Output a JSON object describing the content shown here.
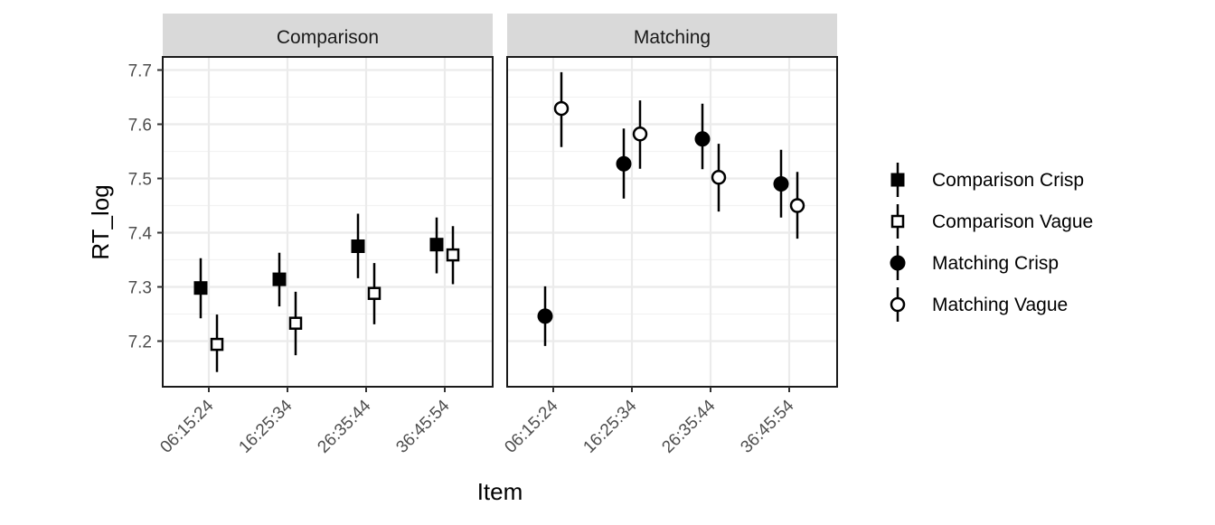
{
  "chart_data": {
    "type": "scatter",
    "subtype": "point-errorbar faceted",
    "xlabel": "Item",
    "ylabel": "RT_log",
    "ylim": [
      7.12,
      7.73
    ],
    "yticks": [
      7.2,
      7.3,
      7.4,
      7.5,
      7.6,
      7.7
    ],
    "categories": [
      "06:15:24",
      "16:25:34",
      "26:35:44",
      "36:45:54"
    ],
    "grid": true,
    "legend_position": "right",
    "panels": [
      {
        "strip": "Comparison",
        "series": [
          {
            "name": "Comparison Crisp",
            "marker": "filled-square",
            "values": [
              7.298,
              7.314,
              7.375,
              7.378
            ],
            "lower": [
              7.242,
              7.264,
              7.316,
              7.325
            ],
            "upper": [
              7.353,
              7.363,
              7.435,
              7.428
            ]
          },
          {
            "name": "Comparison Vague",
            "marker": "open-square",
            "values": [
              7.194,
              7.233,
              7.288,
              7.359
            ],
            "lower": [
              7.143,
              7.174,
              7.231,
              7.305
            ],
            "upper": [
              7.249,
              7.291,
              7.344,
              7.412
            ]
          }
        ]
      },
      {
        "strip": "Matching",
        "series": [
          {
            "name": "Matching Crisp",
            "marker": "filled-circle",
            "values": [
              7.246,
              7.527,
              7.573,
              7.49
            ],
            "lower": [
              7.191,
              7.463,
              7.517,
              7.428
            ],
            "upper": [
              7.301,
              7.592,
              7.638,
              7.553
            ]
          },
          {
            "name": "Matching Vague",
            "marker": "open-circle",
            "values": [
              7.629,
              7.582,
              7.502,
              7.45
            ],
            "lower": [
              7.558,
              7.518,
              7.439,
              7.389
            ],
            "upper": [
              7.696,
              7.644,
              7.564,
              7.512
            ]
          }
        ]
      }
    ]
  }
}
